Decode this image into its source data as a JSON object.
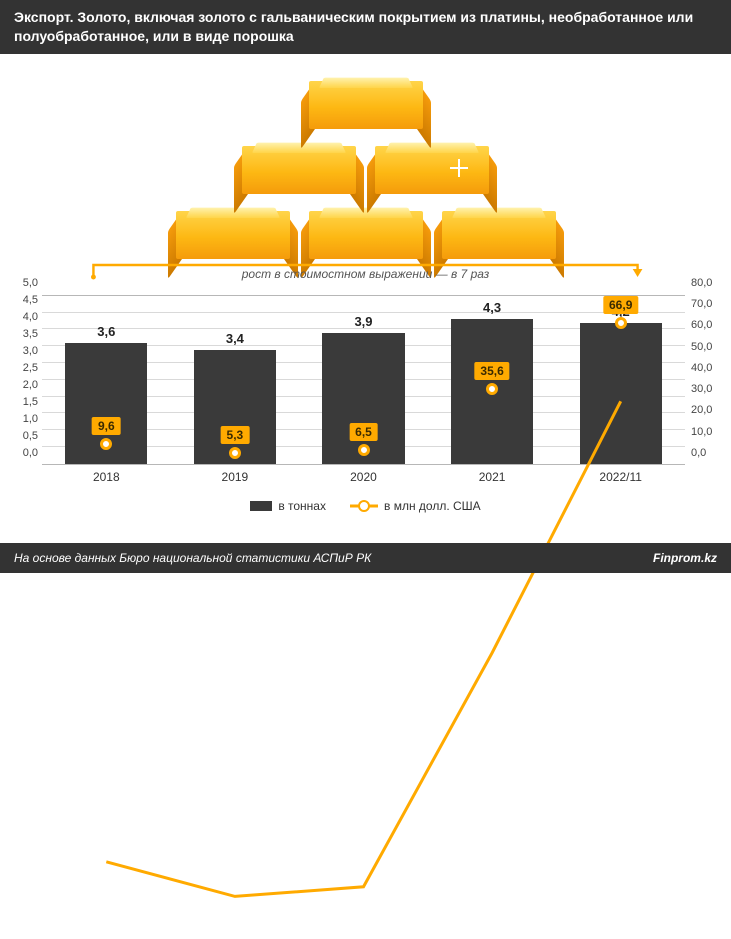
{
  "header": {
    "title": "Экспорт. Золото, включая золото с гальваническим покрытием из платины, необработанное или полуобработанное, или в виде порошка"
  },
  "annotation": {
    "text": "рост в стоимостном выражении — в 7 раз",
    "arrow_color": "#ffaa00"
  },
  "chart": {
    "type": "bar+line",
    "categories": [
      "2018",
      "2019",
      "2020",
      "2021",
      "2022/11"
    ],
    "bars": {
      "values": [
        3.6,
        3.4,
        3.9,
        4.3,
        4.2
      ],
      "labels": [
        "3,6",
        "3,4",
        "3,9",
        "4,3",
        "4,2"
      ],
      "color": "#3a3a3a",
      "axis": "left",
      "legend": "в тоннах"
    },
    "line": {
      "values": [
        9.6,
        5.3,
        6.5,
        35.6,
        66.9
      ],
      "labels": [
        "9,6",
        "5,3",
        "6,5",
        "35,6",
        "66,9"
      ],
      "color": "#ffaa00",
      "marker_fill": "#ffffff",
      "axis": "right",
      "legend": "в млн долл. США"
    },
    "y_left": {
      "min": 0.0,
      "max": 5.0,
      "step": 0.5,
      "ticks": [
        "0,0",
        "0,5",
        "1,0",
        "1,5",
        "2,0",
        "2,5",
        "3,0",
        "3,5",
        "4,0",
        "4,5",
        "5,0"
      ]
    },
    "y_right": {
      "min": 0.0,
      "max": 80.0,
      "step": 10.0,
      "ticks": [
        "0,0",
        "10,0",
        "20,0",
        "30,0",
        "40,0",
        "50,0",
        "60,0",
        "70,0",
        "80,0"
      ]
    },
    "grid_color": "#d9d9d9",
    "background_color": "#ffffff",
    "label_fontsize": 11,
    "bar_label_fontsize": 13
  },
  "footer": {
    "source_text": "На основе данных Бюро национальной статистики АСПиР РК",
    "brand": "Finprom.kz"
  },
  "colors": {
    "header_bg": "#333333",
    "header_fg": "#ffffff",
    "gold_light": "#ffd54a",
    "gold_dark": "#f59b0b",
    "accent": "#ffaa00"
  }
}
